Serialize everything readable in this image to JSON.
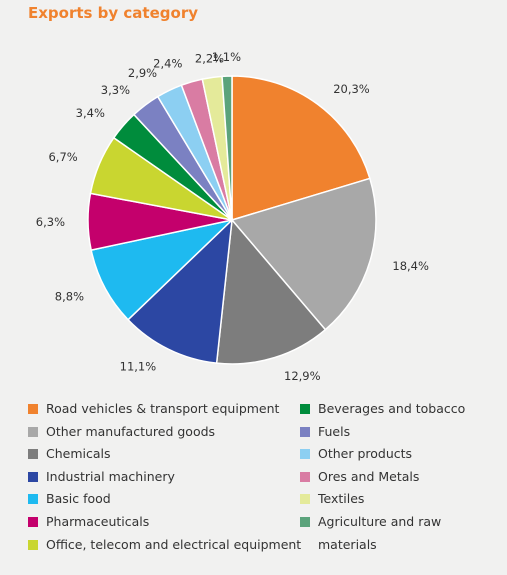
{
  "chart_data": {
    "type": "pie",
    "title": "Exports by category",
    "slices": [
      {
        "label": "Road vehicles & transport equipment",
        "value": 20.3,
        "display": "20,3%",
        "color": "#f0822e"
      },
      {
        "label": "Other manufactured goods",
        "value": 18.4,
        "display": "18,4%",
        "color": "#a8a8a8"
      },
      {
        "label": "Chemicals",
        "value": 12.9,
        "display": "12,9%",
        "color": "#7d7d7d"
      },
      {
        "label": "Industrial machinery",
        "value": 11.1,
        "display": "11,1%",
        "color": "#2c47a3"
      },
      {
        "label": "Basic food",
        "value": 8.8,
        "display": "8,8%",
        "color": "#1ebaf0"
      },
      {
        "label": "Pharmaceuticals",
        "value": 6.3,
        "display": "6,3%",
        "color": "#c4006c"
      },
      {
        "label": "Office, telecom and electrical equipment",
        "value": 6.7,
        "display": "6,7%",
        "color": "#c9d630"
      },
      {
        "label": "Beverages and tobacco",
        "value": 3.4,
        "display": "3,4%",
        "color": "#008c3c"
      },
      {
        "label": "Fuels",
        "value": 3.3,
        "display": "3,3%",
        "color": "#7b81c2"
      },
      {
        "label": "Other products",
        "value": 2.9,
        "display": "2,9%",
        "color": "#8ccff2"
      },
      {
        "label": "Ores and Metals",
        "value": 2.4,
        "display": "2,4%",
        "color": "#d97ca3"
      },
      {
        "label": "Textiles",
        "value": 2.2,
        "display": "2,2%",
        "color": "#e4ea9a"
      },
      {
        "label": "Agriculture and raw materials",
        "value": 1.1,
        "display": "1,1%",
        "color": "#5ba37b"
      }
    ],
    "start_angle_deg": 0,
    "direction": "clockwise",
    "legend_position": "bottom"
  },
  "legend": {
    "column_1": [
      {
        "label": "Road vehicles & transport equipment",
        "color": "#f0822e"
      },
      {
        "label": "Other manufactured goods",
        "color": "#a8a8a8"
      },
      {
        "label": "Chemicals",
        "color": "#7d7d7d"
      },
      {
        "label": "Industrial machinery",
        "color": "#2c47a3"
      },
      {
        "label": "Basic food",
        "color": "#1ebaf0"
      },
      {
        "label": "Pharmaceuticals",
        "color": "#c4006c"
      },
      {
        "label": "Office, telecom and electrical equipment",
        "color": "#c9d630"
      }
    ],
    "column_2": [
      {
        "label": "Beverages and tobacco",
        "color": "#008c3c"
      },
      {
        "label": "Fuels",
        "color": "#7b81c2"
      },
      {
        "label": "Other products",
        "color": "#8ccff2"
      },
      {
        "label": "Ores and Metals",
        "color": "#d97ca3"
      },
      {
        "label": "Textiles",
        "color": "#e4ea9a"
      },
      {
        "label": "Agriculture and raw materials",
        "color": "#5ba37b"
      }
    ]
  }
}
